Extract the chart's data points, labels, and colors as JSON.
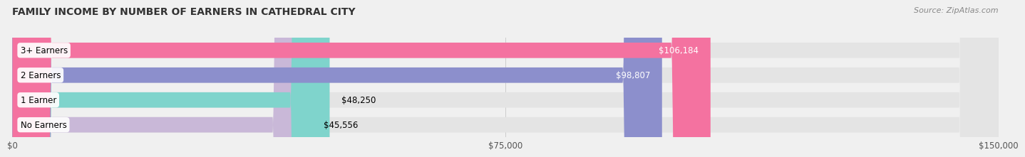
{
  "title": "FAMILY INCOME BY NUMBER OF EARNERS IN CATHEDRAL CITY",
  "source": "Source: ZipAtlas.com",
  "categories": [
    "No Earners",
    "1 Earner",
    "2 Earners",
    "3+ Earners"
  ],
  "values": [
    45556,
    48250,
    98807,
    106184
  ],
  "bar_colors": [
    "#c9b8d8",
    "#7fd4cc",
    "#8c8fcc",
    "#f472a0"
  ],
  "bar_labels": [
    "$45,556",
    "$48,250",
    "$98,807",
    "$106,184"
  ],
  "xlim": [
    0,
    150000
  ],
  "xticks": [
    0,
    75000,
    150000
  ],
  "xtick_labels": [
    "$0",
    "$75,000",
    "$150,000"
  ],
  "background_color": "#f0f0f0",
  "bar_bg_color": "#e4e4e4",
  "title_fontsize": 10,
  "label_fontsize": 8.5,
  "value_fontsize": 8.5
}
